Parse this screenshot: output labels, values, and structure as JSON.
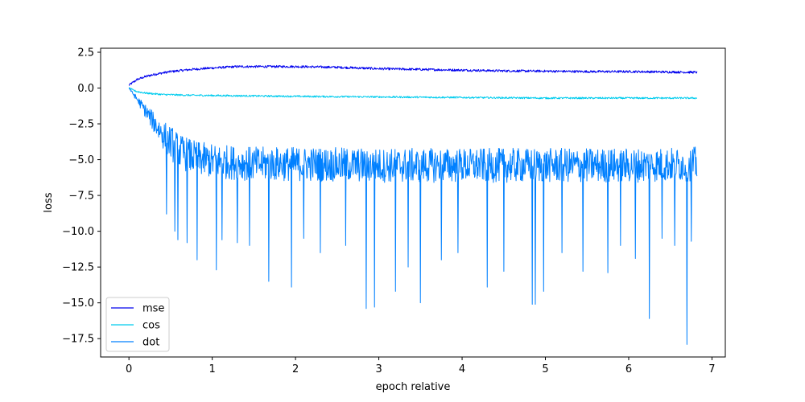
{
  "chart_data": {
    "type": "line",
    "title": "",
    "xlabel": "epoch relative",
    "ylabel": "loss",
    "xlim": [
      -0.34,
      7.16
    ],
    "ylim": [
      -18.78,
      2.78
    ],
    "xticks": [
      0,
      1,
      2,
      3,
      4,
      5,
      6,
      7
    ],
    "xtick_labels": [
      "0",
      "1",
      "2",
      "3",
      "4",
      "5",
      "6",
      "7"
    ],
    "yticks": [
      2.5,
      0.0,
      -2.5,
      -5.0,
      -7.5,
      -10.0,
      -12.5,
      -15.0,
      -17.5
    ],
    "ytick_labels": [
      "2.5",
      "0.0",
      "−2.5",
      "−5.0",
      "−7.5",
      "−10.0",
      "−12.5",
      "−15.0",
      "−17.5"
    ],
    "grid": false,
    "legend_position": "lower-left",
    "series": [
      {
        "name": "mse",
        "color": "#0000ee",
        "x": [
          0,
          0.05,
          0.1,
          0.2,
          0.3,
          0.5,
          0.75,
          1.0,
          1.3,
          1.6,
          2.0,
          2.5,
          3.0,
          3.5,
          4.0,
          4.5,
          5.0,
          5.5,
          6.0,
          6.5,
          6.82
        ],
        "values": [
          0.2,
          0.4,
          0.6,
          0.8,
          0.95,
          1.15,
          1.3,
          1.4,
          1.5,
          1.5,
          1.5,
          1.45,
          1.35,
          1.3,
          1.25,
          1.2,
          1.18,
          1.15,
          1.15,
          1.12,
          1.1
        ],
        "noise": 0.08
      },
      {
        "name": "cos",
        "color": "#00ccee",
        "x": [
          0,
          0.05,
          0.1,
          0.2,
          0.4,
          0.7,
          1.0,
          1.5,
          2.0,
          3.0,
          4.0,
          5.0,
          6.0,
          6.82
        ],
        "values": [
          0.0,
          -0.15,
          -0.25,
          -0.35,
          -0.45,
          -0.5,
          -0.52,
          -0.55,
          -0.58,
          -0.62,
          -0.66,
          -0.7,
          -0.7,
          -0.7
        ],
        "noise": 0.06
      },
      {
        "name": "dot",
        "color": "#0080ff",
        "x": [
          0,
          0.1,
          0.2,
          0.3,
          0.4,
          0.5,
          0.6,
          0.8,
          1.0,
          1.5,
          2.0,
          3.0,
          4.0,
          5.0,
          6.0,
          6.82
        ],
        "values": [
          0.0,
          -0.8,
          -1.6,
          -2.4,
          -3.2,
          -3.8,
          -4.4,
          -4.9,
          -5.1,
          -5.3,
          -5.3,
          -5.4,
          -5.4,
          -5.4,
          -5.4,
          -5.3
        ],
        "noise": 1.2,
        "spikes": [
          {
            "x": 0.45,
            "value": -8.8
          },
          {
            "x": 0.55,
            "value": -10.0
          },
          {
            "x": 0.59,
            "value": -10.6
          },
          {
            "x": 0.7,
            "value": -10.8
          },
          {
            "x": 0.82,
            "value": -12.0
          },
          {
            "x": 1.05,
            "value": -12.7
          },
          {
            "x": 1.12,
            "value": -10.6
          },
          {
            "x": 1.3,
            "value": -10.8
          },
          {
            "x": 1.45,
            "value": -11.0
          },
          {
            "x": 1.68,
            "value": -13.5
          },
          {
            "x": 1.95,
            "value": -13.9
          },
          {
            "x": 2.1,
            "value": -10.5
          },
          {
            "x": 2.3,
            "value": -11.5
          },
          {
            "x": 2.6,
            "value": -11.0
          },
          {
            "x": 2.85,
            "value": -15.4
          },
          {
            "x": 2.95,
            "value": -15.3
          },
          {
            "x": 3.2,
            "value": -14.2
          },
          {
            "x": 3.35,
            "value": -12.5
          },
          {
            "x": 3.5,
            "value": -15.0
          },
          {
            "x": 3.75,
            "value": -12.0
          },
          {
            "x": 3.95,
            "value": -11.5
          },
          {
            "x": 4.3,
            "value": -13.9
          },
          {
            "x": 4.5,
            "value": -12.8
          },
          {
            "x": 4.84,
            "value": -15.1
          },
          {
            "x": 4.88,
            "value": -15.1
          },
          {
            "x": 4.98,
            "value": -14.2
          },
          {
            "x": 5.2,
            "value": -11.5
          },
          {
            "x": 5.45,
            "value": -12.8
          },
          {
            "x": 5.75,
            "value": -12.9
          },
          {
            "x": 5.9,
            "value": -11.0
          },
          {
            "x": 6.08,
            "value": -11.9
          },
          {
            "x": 6.25,
            "value": -16.1
          },
          {
            "x": 6.4,
            "value": -10.5
          },
          {
            "x": 6.55,
            "value": -11.0
          },
          {
            "x": 6.7,
            "value": -17.9
          },
          {
            "x": 6.75,
            "value": -10.7
          }
        ]
      }
    ]
  }
}
